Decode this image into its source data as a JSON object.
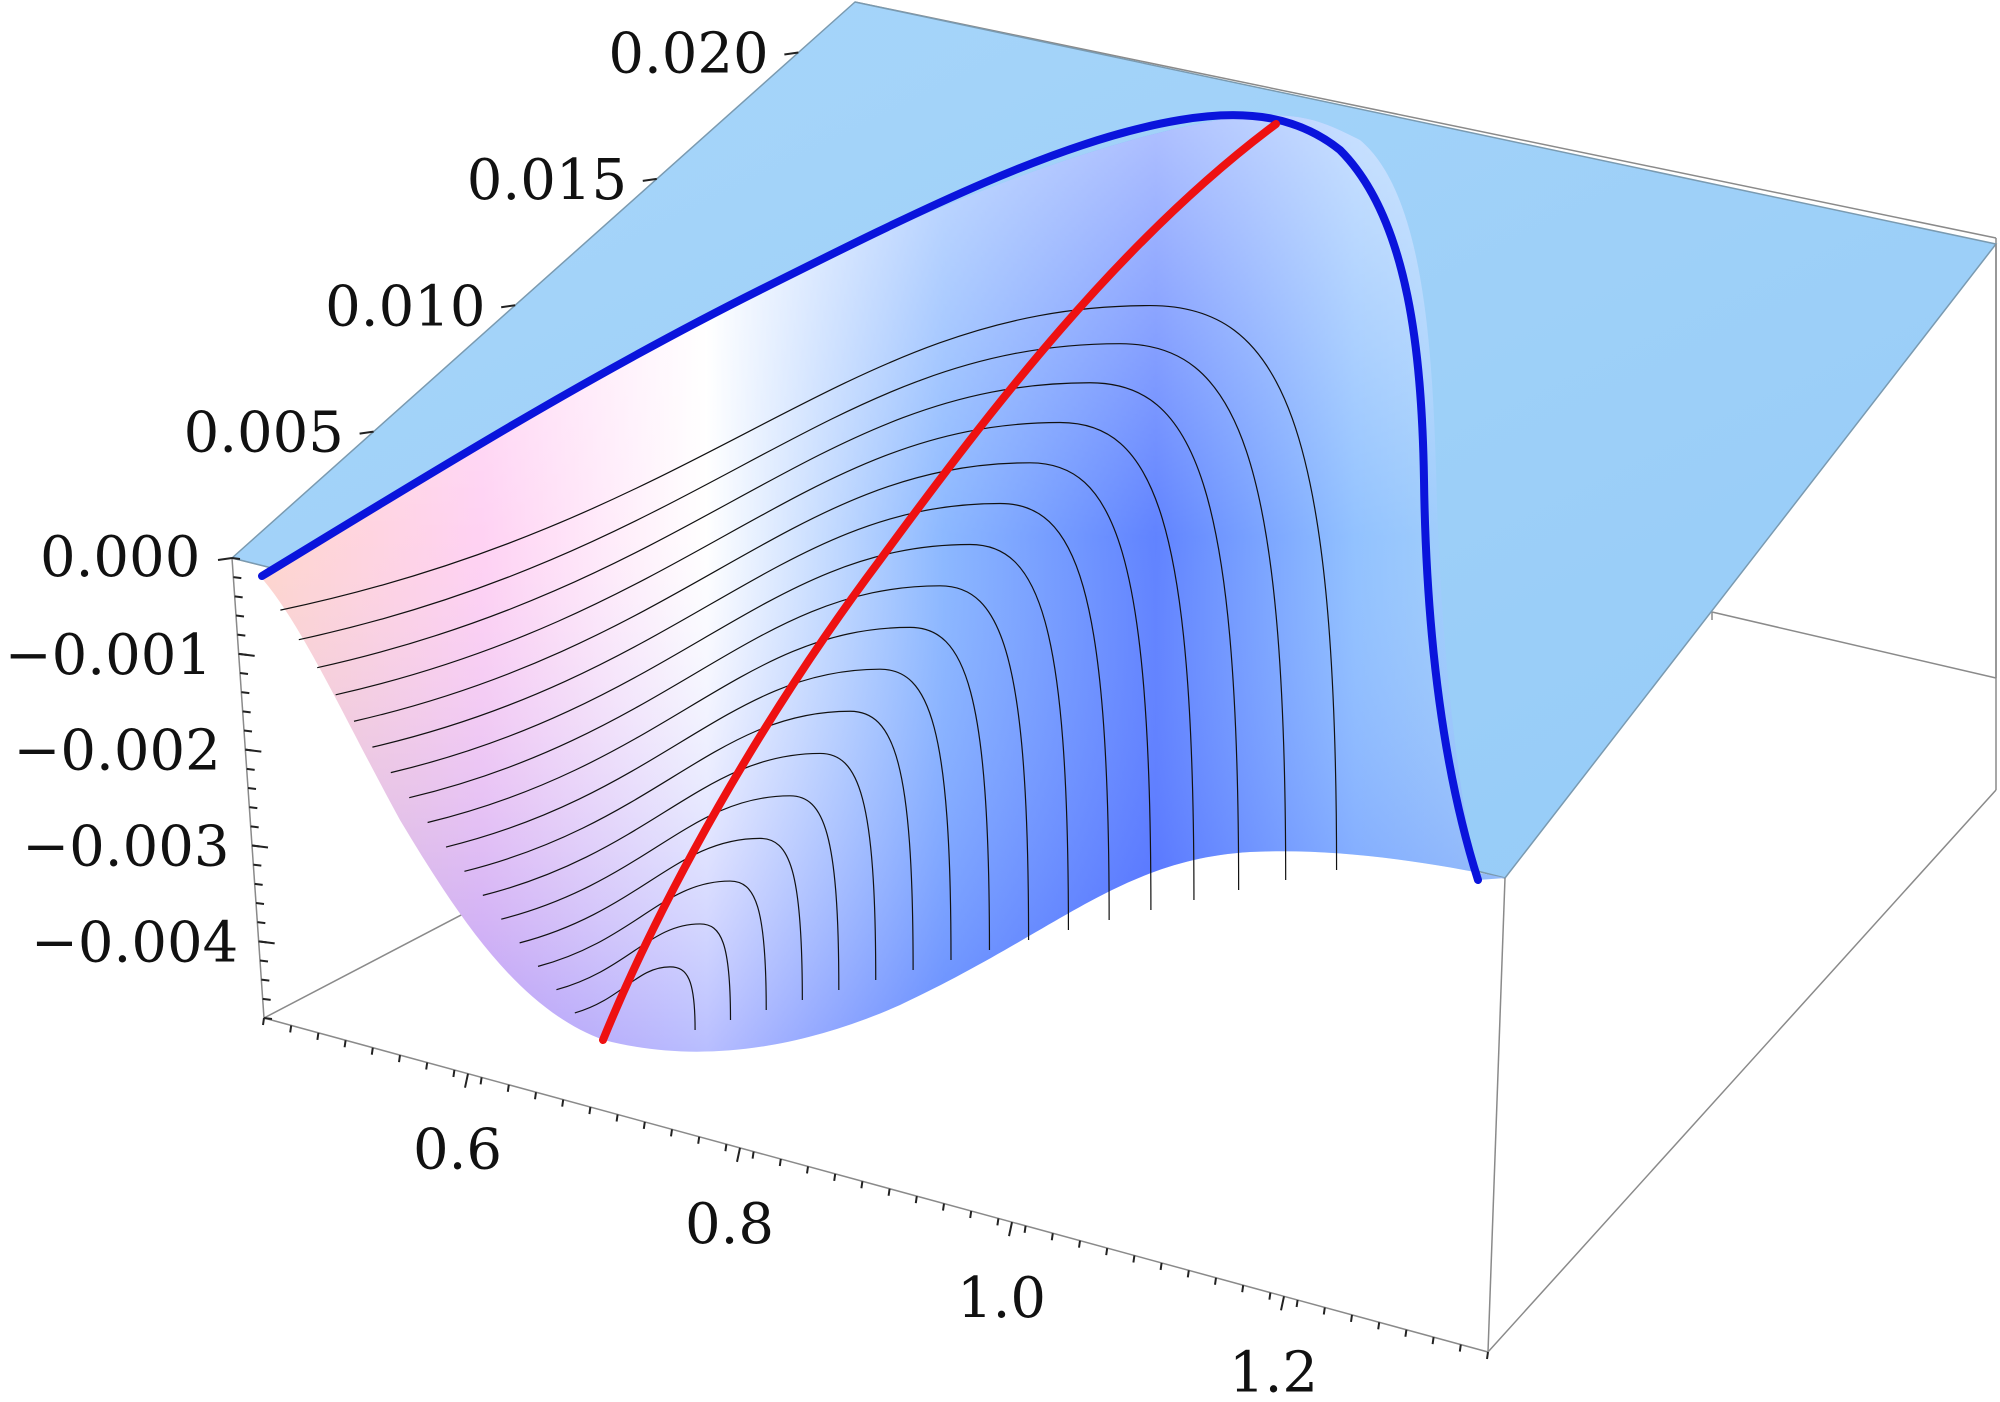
{
  "chart_data": {
    "type": "surface3d",
    "title": "",
    "xlabel": "",
    "ylabel": "",
    "zlabel": "",
    "axes": {
      "x": {
        "range": [
          0.45,
          1.35
        ],
        "ticks": [
          0.6,
          0.8,
          1.0,
          1.2
        ],
        "tick_labels": [
          "0.6",
          "0.8",
          "1.0",
          "1.2"
        ]
      },
      "y": {
        "range": [
          0.0,
          0.022
        ],
        "ticks": [
          0.0,
          0.005,
          0.01,
          0.015,
          0.02
        ],
        "tick_labels": [
          "0.000",
          "0.005",
          "0.010",
          "0.015",
          "0.020"
        ]
      },
      "z": {
        "range": [
          -0.0048,
          0.0
        ],
        "ticks": [
          -0.001,
          -0.002,
          -0.003,
          -0.004
        ],
        "tick_labels": [
          "−0.001",
          "−0.002",
          "−0.003",
          "−0.004"
        ]
      }
    },
    "surface": {
      "description_of_shape": "depression below plane z=0, deepest near x=0.68 at y=0, closing at y=0.019",
      "colors": {
        "flat_plane": "#9fd0f8",
        "deep_blue": "#4a55ff",
        "mid_blue": "#7fb5ff",
        "pink": "#ffc8f0",
        "peach": "#ffd2c8",
        "white": "#ffffff",
        "contour": "#111111"
      },
      "contour_count": 17
    },
    "series": [
      {
        "color": "#0014dc",
        "kind": "boundary curve on z=0",
        "points": [
          {
            "x": 0.46,
            "y": 0.0
          },
          {
            "x": 0.6,
            "y": 0.0055
          },
          {
            "x": 0.75,
            "y": 0.0108
          },
          {
            "x": 0.9,
            "y": 0.015
          },
          {
            "x": 1.0,
            "y": 0.0172
          },
          {
            "x": 1.06,
            "y": 0.018
          },
          {
            "x": 1.1,
            "y": 0.0176
          },
          {
            "x": 1.14,
            "y": 0.015
          },
          {
            "x": 1.16,
            "y": 0.011
          },
          {
            "x": 1.17,
            "y": 0.006
          },
          {
            "x": 1.2,
            "y": 0.0
          }
        ]
      },
      {
        "color": "#ee1111",
        "kind": "ridge curve at surface minimum",
        "points": [
          {
            "x": 0.67,
            "y": 0.0
          },
          {
            "x": 0.76,
            "y": 0.0045
          },
          {
            "x": 0.85,
            "y": 0.009
          },
          {
            "x": 0.94,
            "y": 0.013
          },
          {
            "x": 1.02,
            "y": 0.016
          },
          {
            "x": 1.08,
            "y": 0.0178
          }
        ]
      }
    ],
    "box": true,
    "grid": false,
    "legend": "none"
  }
}
